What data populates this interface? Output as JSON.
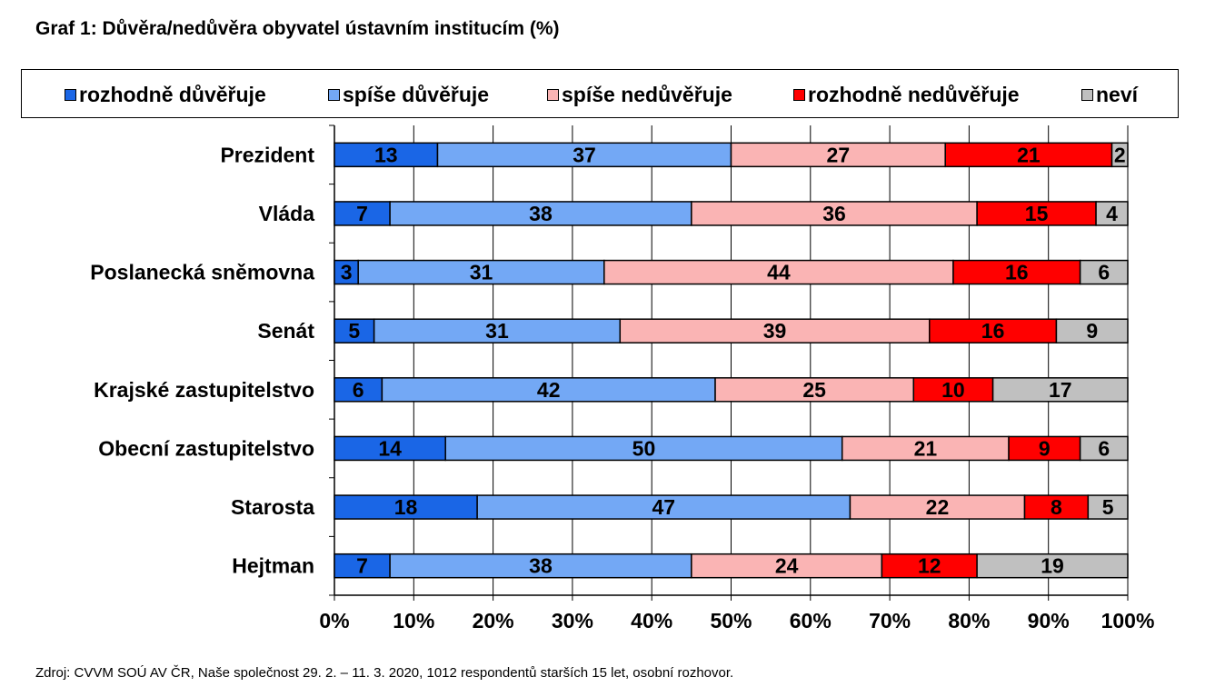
{
  "title": "Graf 1: Důvěra/nedůvěra obyvatel ústavním institucím (%)",
  "source": "Zdroj: CVVM SOÚ AV ČR, Naše společnost 29. 2. – 11. 3. 2020, 1012 respondentů starších 15 let, osobní rozhovor.",
  "colors": {
    "rozhodne_duveruje": "#1a66e6",
    "spise_duveruje": "#73a8f5",
    "spise_neduveruje": "#fab4b4",
    "rozhodne_neduveruje": "#ff0000",
    "nevi": "#c0c0c0"
  },
  "chart_data": {
    "type": "bar",
    "orientation": "horizontal",
    "stacked": "100%",
    "categories": [
      "Prezident",
      "Vláda",
      "Poslanecká sněmovna",
      "Senát",
      "Krajské zastupitelstvo",
      "Obecní zastupitelstvo",
      "Starosta",
      "Hejtman"
    ],
    "series": [
      {
        "name": "rozhodně důvěřuje",
        "color": "#1a66e6",
        "values": [
          13,
          7,
          3,
          5,
          6,
          14,
          18,
          7
        ]
      },
      {
        "name": "spíše důvěřuje",
        "color": "#73a8f5",
        "values": [
          37,
          38,
          31,
          31,
          42,
          50,
          47,
          38
        ]
      },
      {
        "name": "spíše nedůvěřuje",
        "color": "#fab4b4",
        "values": [
          27,
          36,
          44,
          39,
          25,
          21,
          22,
          24
        ]
      },
      {
        "name": "rozhodně nedůvěřuje",
        "color": "#ff0000",
        "values": [
          21,
          15,
          16,
          16,
          10,
          9,
          8,
          12
        ]
      },
      {
        "name": "neví",
        "color": "#c0c0c0",
        "values": [
          2,
          4,
          6,
          9,
          17,
          6,
          5,
          19
        ]
      }
    ],
    "xticks": [
      "0%",
      "10%",
      "20%",
      "30%",
      "40%",
      "50%",
      "60%",
      "70%",
      "80%",
      "90%",
      "100%"
    ],
    "xlim": [
      0,
      100
    ],
    "grid": true,
    "legend_position": "top"
  }
}
